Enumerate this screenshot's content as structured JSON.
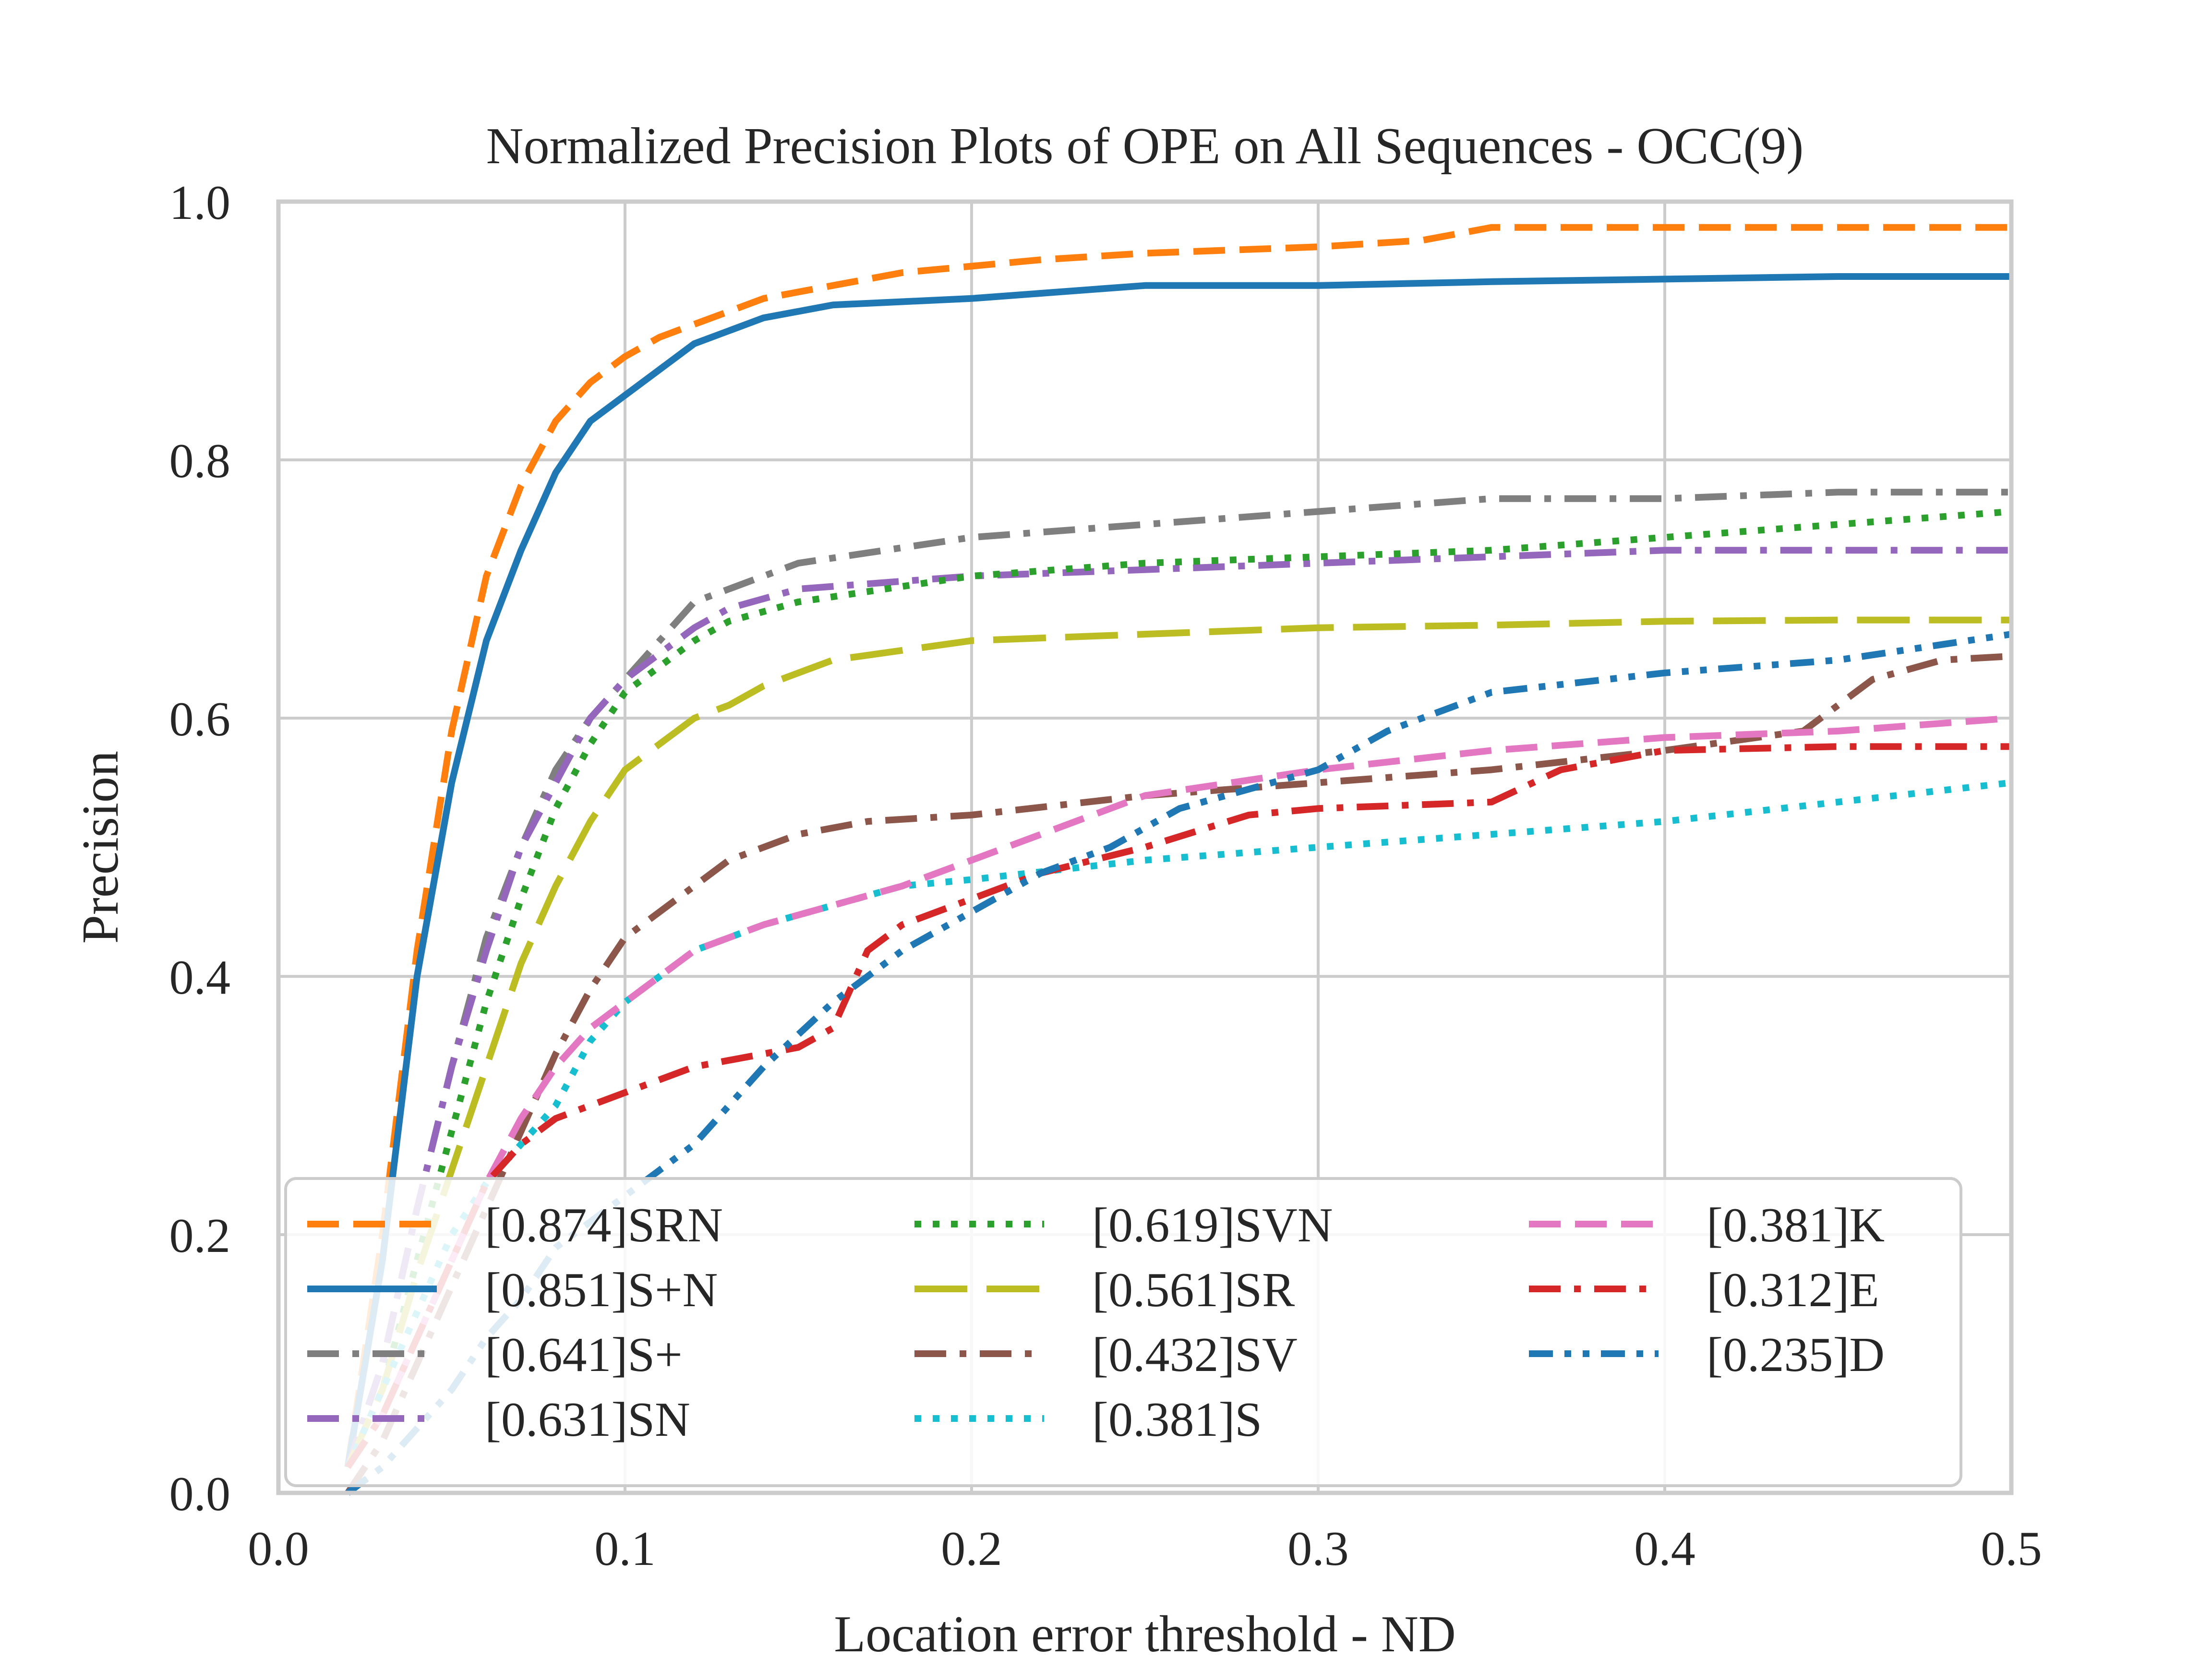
{
  "chart_data": {
    "type": "line",
    "title": "Normalized Precision Plots of OPE on All Sequences - OCC(9)",
    "xlabel": "Location error threshold - ND",
    "ylabel": "Precision",
    "xlim": [
      0,
      0.5
    ],
    "ylim": [
      0,
      1.0
    ],
    "xticks": [
      "0.0",
      "0.1",
      "0.2",
      "0.3",
      "0.4",
      "0.5"
    ],
    "yticks": [
      "0.0",
      "0.2",
      "0.4",
      "0.6",
      "0.8",
      "1.0"
    ],
    "grid": true,
    "legend_position": "lower-center",
    "series": [
      {
        "name": "[0.874]SRN",
        "color": "#ff7f0e",
        "style": "dashed",
        "x": [
          0.02,
          0.03,
          0.04,
          0.05,
          0.06,
          0.07,
          0.08,
          0.09,
          0.1,
          0.11,
          0.12,
          0.13,
          0.14,
          0.15,
          0.16,
          0.18,
          0.2,
          0.22,
          0.25,
          0.3,
          0.33,
          0.35,
          0.4,
          0.45,
          0.5
        ],
        "y": [
          0.02,
          0.2,
          0.42,
          0.59,
          0.71,
          0.78,
          0.83,
          0.86,
          0.88,
          0.895,
          0.905,
          0.915,
          0.925,
          0.93,
          0.935,
          0.945,
          0.95,
          0.955,
          0.96,
          0.965,
          0.97,
          0.98,
          0.98,
          0.98,
          0.98
        ]
      },
      {
        "name": "[0.851]S+N",
        "color": "#1f77b4",
        "style": "solid",
        "x": [
          0.02,
          0.03,
          0.04,
          0.05,
          0.06,
          0.07,
          0.08,
          0.09,
          0.1,
          0.11,
          0.12,
          0.13,
          0.14,
          0.15,
          0.16,
          0.2,
          0.25,
          0.3,
          0.35,
          0.4,
          0.45,
          0.5
        ],
        "y": [
          0.02,
          0.18,
          0.4,
          0.55,
          0.66,
          0.73,
          0.79,
          0.83,
          0.85,
          0.87,
          0.89,
          0.9,
          0.91,
          0.915,
          0.92,
          0.925,
          0.935,
          0.935,
          0.938,
          0.94,
          0.942,
          0.942
        ]
      },
      {
        "name": "[0.641]S+",
        "color": "#7f7f7f",
        "style": "dashdot",
        "x": [
          0.02,
          0.03,
          0.04,
          0.05,
          0.06,
          0.07,
          0.08,
          0.09,
          0.1,
          0.11,
          0.12,
          0.13,
          0.15,
          0.2,
          0.25,
          0.3,
          0.35,
          0.4,
          0.45,
          0.5
        ],
        "y": [
          0.02,
          0.1,
          0.22,
          0.33,
          0.43,
          0.5,
          0.56,
          0.6,
          0.63,
          0.66,
          0.69,
          0.7,
          0.72,
          0.74,
          0.75,
          0.76,
          0.77,
          0.77,
          0.775,
          0.775
        ]
      },
      {
        "name": "[0.631]SN",
        "color": "#9467bd",
        "style": "dashdot",
        "x": [
          0.02,
          0.03,
          0.04,
          0.05,
          0.06,
          0.07,
          0.08,
          0.09,
          0.1,
          0.11,
          0.12,
          0.13,
          0.15,
          0.2,
          0.25,
          0.3,
          0.35,
          0.4,
          0.45,
          0.5
        ],
        "y": [
          0.02,
          0.1,
          0.22,
          0.33,
          0.42,
          0.5,
          0.55,
          0.6,
          0.63,
          0.65,
          0.67,
          0.685,
          0.7,
          0.71,
          0.715,
          0.72,
          0.725,
          0.73,
          0.73,
          0.73
        ]
      },
      {
        "name": "[0.619]SVN",
        "color": "#2ca02c",
        "style": "dotted",
        "x": [
          0.02,
          0.03,
          0.04,
          0.05,
          0.06,
          0.07,
          0.08,
          0.09,
          0.1,
          0.11,
          0.12,
          0.13,
          0.15,
          0.2,
          0.25,
          0.3,
          0.35,
          0.4,
          0.45,
          0.5
        ],
        "y": [
          0.02,
          0.08,
          0.18,
          0.28,
          0.38,
          0.46,
          0.53,
          0.58,
          0.62,
          0.64,
          0.66,
          0.675,
          0.69,
          0.71,
          0.72,
          0.725,
          0.73,
          0.74,
          0.75,
          0.76
        ]
      },
      {
        "name": "[0.561]SR",
        "color": "#bcbd22",
        "style": "longdash",
        "x": [
          0.02,
          0.03,
          0.04,
          0.05,
          0.06,
          0.07,
          0.08,
          0.09,
          0.1,
          0.11,
          0.12,
          0.13,
          0.14,
          0.15,
          0.16,
          0.2,
          0.25,
          0.3,
          0.35,
          0.4,
          0.45,
          0.5
        ],
        "y": [
          0.02,
          0.08,
          0.17,
          0.25,
          0.33,
          0.41,
          0.47,
          0.52,
          0.56,
          0.58,
          0.6,
          0.61,
          0.625,
          0.635,
          0.645,
          0.66,
          0.665,
          0.67,
          0.672,
          0.675,
          0.676,
          0.676
        ]
      },
      {
        "name": "[0.432]SV",
        "color": "#8c564b",
        "style": "dashdot",
        "x": [
          0.02,
          0.03,
          0.04,
          0.05,
          0.06,
          0.07,
          0.08,
          0.09,
          0.1,
          0.11,
          0.12,
          0.13,
          0.15,
          0.17,
          0.2,
          0.25,
          0.3,
          0.35,
          0.4,
          0.44,
          0.46,
          0.48,
          0.5
        ],
        "y": [
          0.0,
          0.04,
          0.1,
          0.16,
          0.22,
          0.28,
          0.34,
          0.39,
          0.43,
          0.45,
          0.47,
          0.49,
          0.51,
          0.52,
          0.525,
          0.54,
          0.55,
          0.56,
          0.575,
          0.59,
          0.63,
          0.645,
          0.648
        ]
      },
      {
        "name": "[0.381]S",
        "color": "#17becf",
        "style": "dotted",
        "x": [
          0.02,
          0.03,
          0.04,
          0.05,
          0.06,
          0.07,
          0.08,
          0.09,
          0.1,
          0.11,
          0.12,
          0.14,
          0.16,
          0.18,
          0.2,
          0.25,
          0.3,
          0.35,
          0.4,
          0.45,
          0.5
        ],
        "y": [
          0.02,
          0.08,
          0.14,
          0.2,
          0.24,
          0.27,
          0.3,
          0.35,
          0.38,
          0.4,
          0.42,
          0.44,
          0.455,
          0.47,
          0.475,
          0.49,
          0.5,
          0.51,
          0.52,
          0.535,
          0.55
        ]
      },
      {
        "name": "[0.381]K",
        "color": "#e377c2",
        "style": "dashed",
        "x": [
          0.02,
          0.03,
          0.04,
          0.05,
          0.06,
          0.07,
          0.08,
          0.09,
          0.1,
          0.11,
          0.12,
          0.14,
          0.16,
          0.18,
          0.2,
          0.22,
          0.25,
          0.3,
          0.35,
          0.4,
          0.45,
          0.5
        ],
        "y": [
          0.02,
          0.06,
          0.12,
          0.18,
          0.24,
          0.29,
          0.33,
          0.36,
          0.38,
          0.4,
          0.42,
          0.44,
          0.455,
          0.47,
          0.49,
          0.51,
          0.54,
          0.56,
          0.575,
          0.585,
          0.59,
          0.6
        ]
      },
      {
        "name": "[0.312]E",
        "color": "#d62728",
        "style": "dashdot",
        "x": [
          0.02,
          0.03,
          0.04,
          0.05,
          0.06,
          0.07,
          0.08,
          0.09,
          0.1,
          0.12,
          0.14,
          0.15,
          0.16,
          0.17,
          0.18,
          0.2,
          0.22,
          0.25,
          0.28,
          0.3,
          0.35,
          0.37,
          0.4,
          0.45,
          0.5
        ],
        "y": [
          0.02,
          0.06,
          0.12,
          0.18,
          0.24,
          0.27,
          0.29,
          0.3,
          0.31,
          0.33,
          0.34,
          0.345,
          0.36,
          0.42,
          0.44,
          0.46,
          0.48,
          0.5,
          0.525,
          0.53,
          0.535,
          0.56,
          0.575,
          0.578,
          0.578
        ]
      },
      {
        "name": "[0.235]D",
        "color": "#1f77b4",
        "style": "dashdotdot",
        "x": [
          0.02,
          0.03,
          0.04,
          0.05,
          0.06,
          0.07,
          0.08,
          0.09,
          0.1,
          0.12,
          0.14,
          0.16,
          0.18,
          0.2,
          0.22,
          0.24,
          0.26,
          0.3,
          0.32,
          0.35,
          0.4,
          0.45,
          0.5
        ],
        "y": [
          0.0,
          0.02,
          0.05,
          0.08,
          0.12,
          0.15,
          0.19,
          0.21,
          0.23,
          0.27,
          0.33,
          0.38,
          0.42,
          0.45,
          0.48,
          0.5,
          0.53,
          0.56,
          0.59,
          0.62,
          0.635,
          0.645,
          0.665
        ]
      }
    ]
  }
}
